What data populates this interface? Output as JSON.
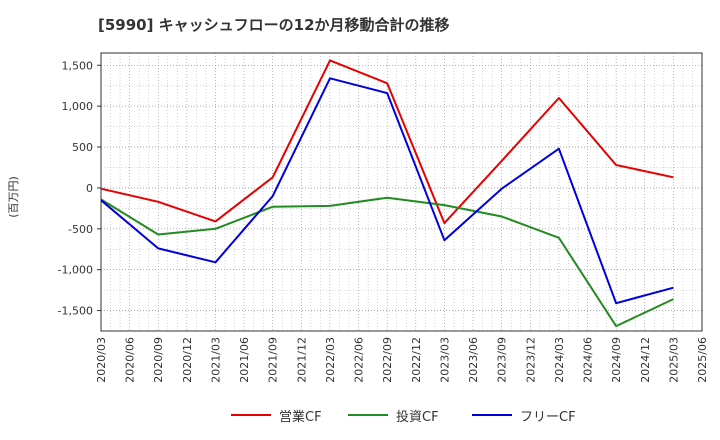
{
  "chart_data": {
    "type": "line",
    "title": "[5990]  キャッシュフローの12か月移動合計の推移",
    "ylabel": "(百万円)",
    "xlabel": "",
    "ylim": [
      -1750,
      1650
    ],
    "yticks": [
      1500,
      1000,
      500,
      0,
      -500,
      -1000,
      -1500
    ],
    "ytick_labels": [
      "1,500",
      "1,000",
      "500",
      "0",
      "-500",
      "-1,000",
      "-1,500"
    ],
    "x_ticks": [
      "2020/03",
      "2020/06",
      "2020/09",
      "2020/12",
      "2021/03",
      "2021/06",
      "2021/09",
      "2021/12",
      "2022/03",
      "2022/06",
      "2022/09",
      "2022/12",
      "2023/03",
      "2023/06",
      "2023/09",
      "2023/12",
      "2024/03",
      "2024/06",
      "2024/09",
      "2024/12",
      "2025/03",
      "2025/06"
    ],
    "grid": true,
    "legend_position": "bottom",
    "series": [
      {
        "name": "営業CF",
        "color": "#e60000",
        "points": [
          {
            "x": "2020/03",
            "y": -10
          },
          {
            "x": "2020/09",
            "y": -170
          },
          {
            "x": "2021/03",
            "y": -410
          },
          {
            "x": "2021/09",
            "y": 130
          },
          {
            "x": "2022/03",
            "y": 1560
          },
          {
            "x": "2022/09",
            "y": 1280
          },
          {
            "x": "2023/03",
            "y": -430
          },
          {
            "x": "2023/09",
            "y": 330
          },
          {
            "x": "2024/03",
            "y": 1100
          },
          {
            "x": "2024/09",
            "y": 280
          },
          {
            "x": "2025/03",
            "y": 130
          }
        ]
      },
      {
        "name": "投資CF",
        "color": "#228b22",
        "points": [
          {
            "x": "2020/03",
            "y": -140
          },
          {
            "x": "2020/09",
            "y": -570
          },
          {
            "x": "2021/03",
            "y": -500
          },
          {
            "x": "2021/09",
            "y": -230
          },
          {
            "x": "2022/03",
            "y": -220
          },
          {
            "x": "2022/09",
            "y": -120
          },
          {
            "x": "2023/03",
            "y": -210
          },
          {
            "x": "2023/09",
            "y": -350
          },
          {
            "x": "2024/03",
            "y": -610
          },
          {
            "x": "2024/09",
            "y": -1690
          },
          {
            "x": "2025/03",
            "y": -1360
          }
        ]
      },
      {
        "name": "フリーCF",
        "color": "#0000dd",
        "points": [
          {
            "x": "2020/03",
            "y": -150
          },
          {
            "x": "2020/09",
            "y": -740
          },
          {
            "x": "2021/03",
            "y": -910
          },
          {
            "x": "2021/09",
            "y": -100
          },
          {
            "x": "2022/03",
            "y": 1340
          },
          {
            "x": "2022/09",
            "y": 1160
          },
          {
            "x": "2023/03",
            "y": -640
          },
          {
            "x": "2023/09",
            "y": -10
          },
          {
            "x": "2024/03",
            "y": 480
          },
          {
            "x": "2024/09",
            "y": -1410
          },
          {
            "x": "2025/03",
            "y": -1220
          }
        ]
      }
    ]
  }
}
